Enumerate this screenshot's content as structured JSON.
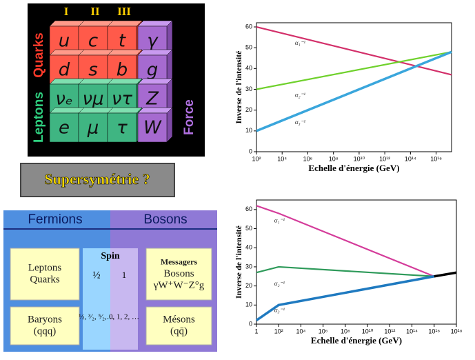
{
  "particle_table": {
    "generations": [
      "I",
      "II",
      "III"
    ],
    "groups": [
      "Quarks",
      "Leptons",
      "Force"
    ],
    "rows": [
      [
        "u",
        "c",
        "t",
        "γ"
      ],
      [
        "d",
        "s",
        "b",
        "g"
      ],
      [
        "νₑ",
        "νμ",
        "ντ",
        "Z"
      ],
      [
        "e",
        "μ",
        "τ",
        "W"
      ]
    ]
  },
  "banner": "Supersymétrie ?",
  "chart_data": [
    {
      "type": "line",
      "ylabel": "Inverse de l'intensité",
      "xlabel": "Echelle d'énergie (GeV)",
      "log_x": true,
      "grid": false,
      "xlim": [
        100,
        1.6e+17
      ],
      "ylim": [
        0,
        62
      ],
      "xticks": [
        {
          "value": 100,
          "label": "10²"
        },
        {
          "value": 10000,
          "label": "10⁴"
        },
        {
          "value": 1000000,
          "label": "10⁶"
        },
        {
          "value": 100000000,
          "label": "10⁸"
        },
        {
          "value": 10000000000,
          "label": "10¹⁰"
        },
        {
          "value": 1000000000000,
          "label": "10¹²"
        },
        {
          "value": 100000000000000,
          "label": "10¹⁴"
        },
        {
          "value": 10000000000000000,
          "label": "10¹⁶"
        }
      ],
      "yticks": [
        0,
        10,
        20,
        30,
        40,
        50,
        60
      ],
      "series": [
        {
          "name": "α₁⁻¹",
          "color": "#d3306a",
          "x": [
            100,
            1.6e+17
          ],
          "values": [
            60,
            37
          ]
        },
        {
          "name": "α₂⁻¹",
          "color": "#6fd12c",
          "x": [
            100,
            1.6e+17
          ],
          "values": [
            30,
            48
          ]
        },
        {
          "name": "α₃⁻¹",
          "color": "#3aa6dc",
          "x": [
            100,
            1.6e+17
          ],
          "values": [
            10,
            48
          ]
        }
      ]
    },
    {
      "type": "line",
      "ylabel": "Inverse de l'intensité",
      "xlabel": "Echelle d'énergie (GeV)",
      "log_x": true,
      "grid": false,
      "xlim": [
        1,
        1e+18
      ],
      "ylim": [
        0,
        65
      ],
      "xticks": [
        1,
        {
          "value": 100,
          "label": "10²"
        },
        {
          "value": 10000,
          "label": "10⁴"
        },
        {
          "value": 1000000,
          "label": "10⁶"
        },
        {
          "value": 100000000,
          "label": "10⁸"
        },
        {
          "value": 10000000000,
          "label": "10¹⁰"
        },
        {
          "value": 1000000000000,
          "label": "10¹²"
        },
        {
          "value": 100000000000000,
          "label": "10¹⁴"
        },
        {
          "value": 10000000000000000,
          "label": "10¹⁶"
        },
        {
          "value": 1000000000000000000,
          "label": "10¹⁸"
        }
      ],
      "yticks": [
        0,
        10,
        20,
        30,
        40,
        50,
        60
      ],
      "series": [
        {
          "name": "α₁⁻¹",
          "color": "#d43c9a",
          "x": [
            1,
            100,
            1e+16
          ],
          "values": [
            62,
            58,
            25
          ]
        },
        {
          "name": "α₂⁻¹",
          "color": "#2e9a5a",
          "x": [
            1,
            100,
            1e+16
          ],
          "values": [
            27,
            30,
            25
          ]
        },
        {
          "name": "α₃⁻¹",
          "color": "#1f7ac0",
          "x": [
            1,
            100,
            1e+16
          ],
          "values": [
            2,
            10,
            25
          ]
        },
        {
          "color": "#000000",
          "x": [
            1e+16,
            1e+18
          ],
          "values": [
            25,
            27
          ]
        }
      ]
    }
  ],
  "comparison": {
    "headers": [
      "Fermions",
      "Bosons"
    ],
    "spin_title": "Spin",
    "fermions": [
      [
        "Leptons",
        "Quarks"
      ],
      [
        "Baryons",
        "(qqq)"
      ]
    ],
    "bosons": [
      [
        "Messagers",
        "Bosons",
        "γW⁺W⁻Z°g"
      ],
      [
        "Mésons",
        "(qq̄)"
      ]
    ],
    "spins": [
      [
        "½",
        "1"
      ],
      [
        "½, ³⁄₂, ⁵⁄₂,…",
        "0, 1, 2, …"
      ]
    ]
  }
}
